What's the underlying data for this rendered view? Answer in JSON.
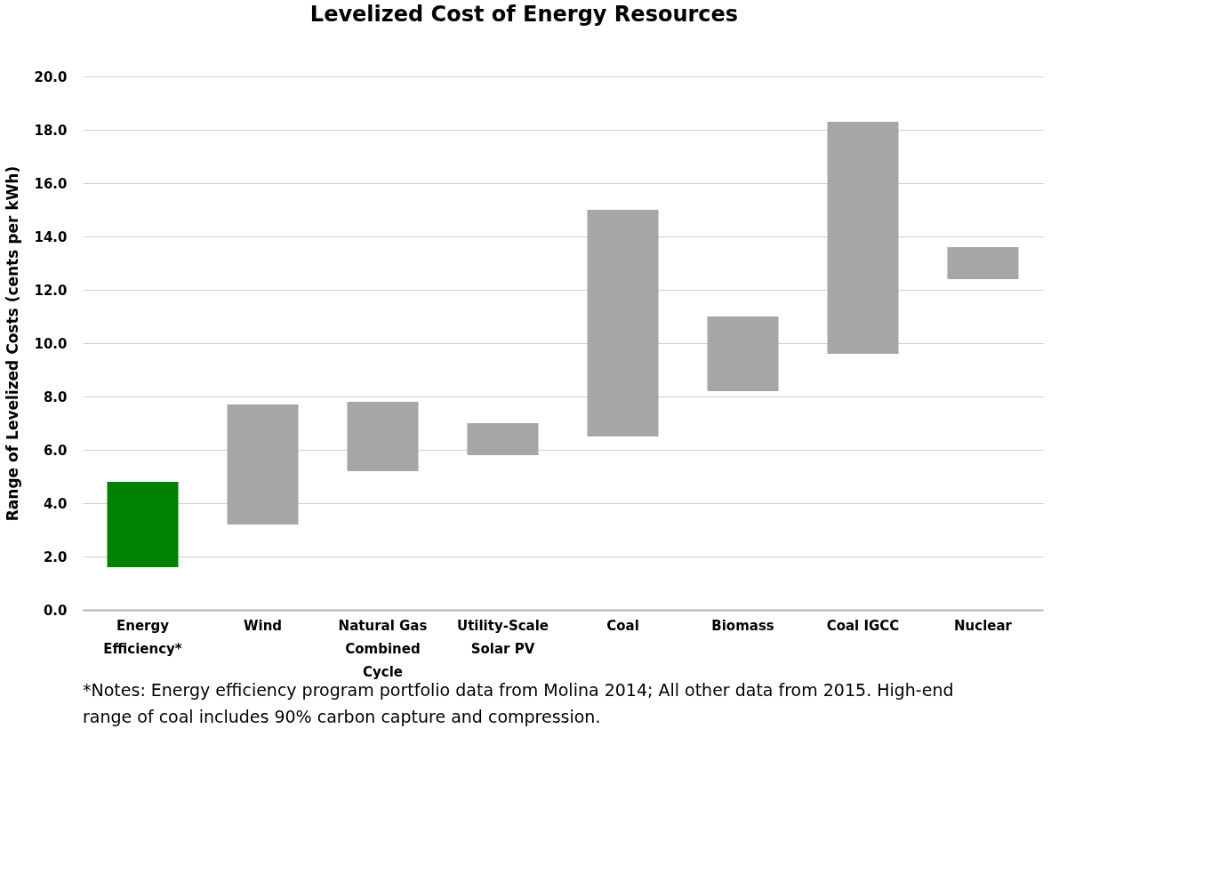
{
  "chart_data": {
    "type": "bar",
    "title": "Levelized Cost of Energy Resources",
    "ylabel": "Range of Levelized Costs (cents per kWh)",
    "categories": [
      "Energy Efficiency*",
      "Wind",
      "Natural Gas Combined Cycle",
      "Utility-Scale Solar PV",
      "Coal",
      "Biomass",
      "Coal IGCC",
      "Nuclear"
    ],
    "base": [
      1.6,
      3.2,
      5.2,
      5.8,
      6.5,
      8.2,
      9.6,
      12.4
    ],
    "values": [
      3.2,
      4.5,
      2.6,
      1.2,
      8.5,
      2.8,
      8.7,
      1.2
    ],
    "colors": [
      "#008000",
      "#a6a6a6",
      "#a6a6a6",
      "#a6a6a6",
      "#a6a6a6",
      "#a6a6a6",
      "#a6a6a6",
      "#a6a6a6"
    ],
    "ylim": [
      0,
      20
    ],
    "yticks": [
      {
        "value": 0,
        "label": "0.0"
      },
      {
        "value": 2,
        "label": "2.0"
      },
      {
        "value": 4,
        "label": "4.0"
      },
      {
        "value": 6,
        "label": "6.0"
      },
      {
        "value": 8,
        "label": "8.0"
      },
      {
        "value": 10,
        "label": "10.0"
      },
      {
        "value": 12,
        "label": "12.0"
      },
      {
        "value": 14,
        "label": "14.0"
      },
      {
        "value": 16,
        "label": "16.0"
      },
      {
        "value": 18,
        "label": "18.0"
      },
      {
        "value": 20,
        "label": "20.0"
      }
    ],
    "grid": "y",
    "annotations": [
      "*Notes: Energy efficiency program portfolio data from Molina 2014; All other data from 2015. High-end range of coal includes 90% carbon capture and compression."
    ]
  }
}
